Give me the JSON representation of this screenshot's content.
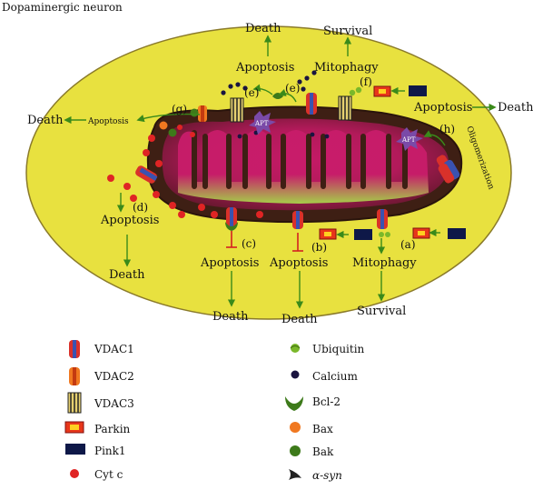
{
  "title": "Dopaminergic neuron",
  "labels": {
    "death_top": "Death",
    "survival_top": "Survival",
    "apoptosis_top": "Apoptosis",
    "mitophagy_top": "Mitophagy",
    "e1": "(e)",
    "e2": "(e)",
    "f": "(f)",
    "g": "(g)",
    "h": "(h)",
    "apoptosis_right": "Apoptosis",
    "death_right": "Death",
    "death_left": "Death",
    "apoptosis_left": "Apoptosis",
    "oligomerization": "Oligomerization",
    "d": "(d)",
    "apoptosis_d": "Apoptosis",
    "death_d": "Death",
    "c": "(c)",
    "apoptosis_c": "Apoptosis",
    "death_c": "Death",
    "b": "(b)",
    "apoptosis_b": "Apoptosis",
    "death_b": "Death",
    "a": "(a)",
    "mitophagy_a": "Mitophagy",
    "survival_a": "Survival",
    "apt_1": "APT",
    "apt_2": "APT"
  },
  "legend": {
    "left": [
      {
        "icon": "vdac1-icon",
        "label": "VDAC1"
      },
      {
        "icon": "vdac2-icon",
        "label": "VDAC2"
      },
      {
        "icon": "vdac3-icon",
        "label": "VDAC3"
      },
      {
        "icon": "parkin-icon",
        "label": "Parkin"
      },
      {
        "icon": "pink1-icon",
        "label": "Pink1"
      },
      {
        "icon": "cytc-icon",
        "label": "Cyt c"
      }
    ],
    "right": [
      {
        "icon": "ubiquitin-icon",
        "label": "Ubiquitin"
      },
      {
        "icon": "calcium-icon",
        "label": "Calcium"
      },
      {
        "icon": "bcl2-icon",
        "label": "Bcl-2"
      },
      {
        "icon": "bax-icon",
        "label": "Bax"
      },
      {
        "icon": "bak-icon",
        "label": "Bak"
      },
      {
        "icon": "alpha-syn-icon",
        "label": "α-syn"
      }
    ]
  },
  "colors": {
    "cell": "#e8e13f",
    "cell_stroke": "#8a7a2a",
    "mito_outer": "#4a2418",
    "mito_mid": "#b0185a",
    "mito_inner": "#9acd32",
    "arrow": "#3a8a1a",
    "inhibit": "#d42020",
    "cytc": "#e02424",
    "parkin": "#e8361a",
    "pink1": "#0e1848",
    "bak": "#3d7a1a",
    "bax": "#f07820",
    "calcium": "#1a1440"
  }
}
